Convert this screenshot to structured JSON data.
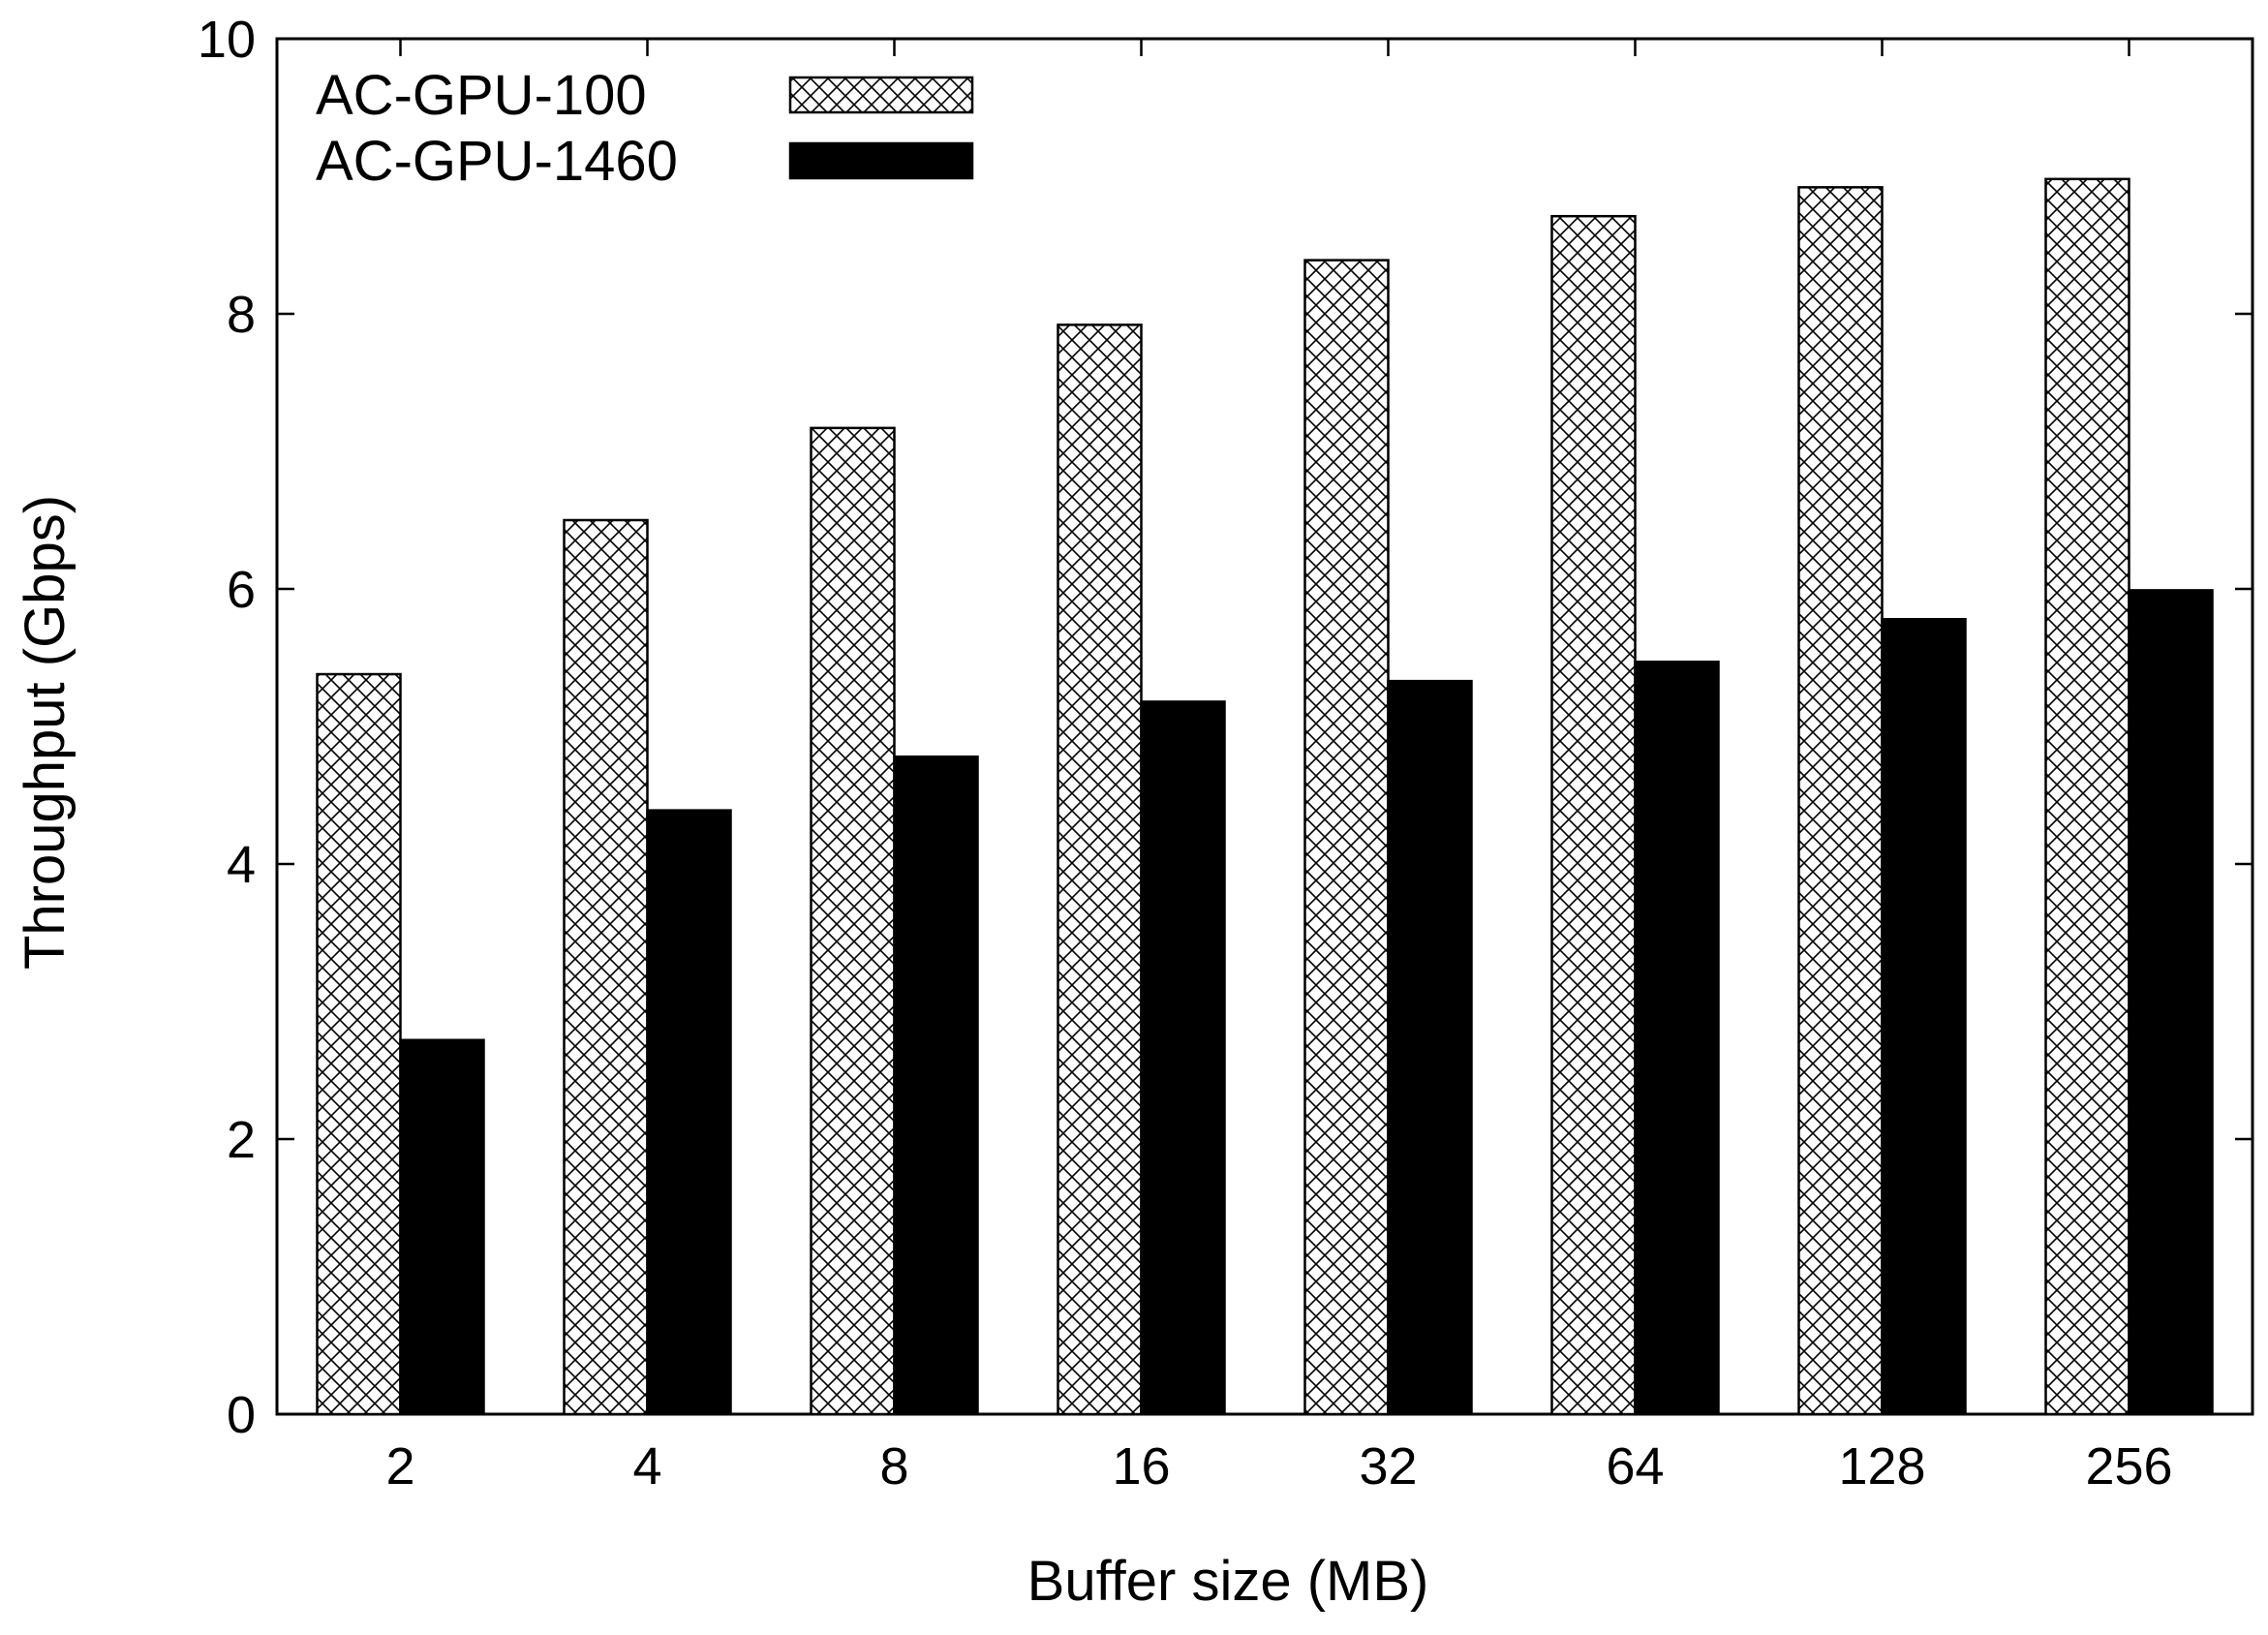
{
  "chart_data": {
    "type": "bar",
    "title": "",
    "xlabel": "Buffer size (MB)",
    "ylabel": "Throughput (Gbps)",
    "categories": [
      "2",
      "4",
      "8",
      "16",
      "32",
      "64",
      "128",
      "256"
    ],
    "series": [
      {
        "name": "AC-GPU-100",
        "values": [
          5.38,
          6.5,
          7.17,
          7.92,
          8.39,
          8.71,
          8.92,
          8.98
        ],
        "pattern": "crosshatch"
      },
      {
        "name": "AC-GPU-1460",
        "values": [
          2.72,
          4.39,
          4.78,
          5.18,
          5.33,
          5.47,
          5.78,
          5.99
        ],
        "pattern": "solid"
      }
    ],
    "ylim": [
      0,
      10
    ],
    "yticks": [
      "0",
      "2",
      "4",
      "6",
      "8",
      "10"
    ],
    "legend_position": "top-left",
    "grid": false,
    "colors": {
      "hatch_stroke": "#000000",
      "hatch_background": "#ffffff",
      "solid_fill": "#000000",
      "axis": "#000000"
    }
  }
}
